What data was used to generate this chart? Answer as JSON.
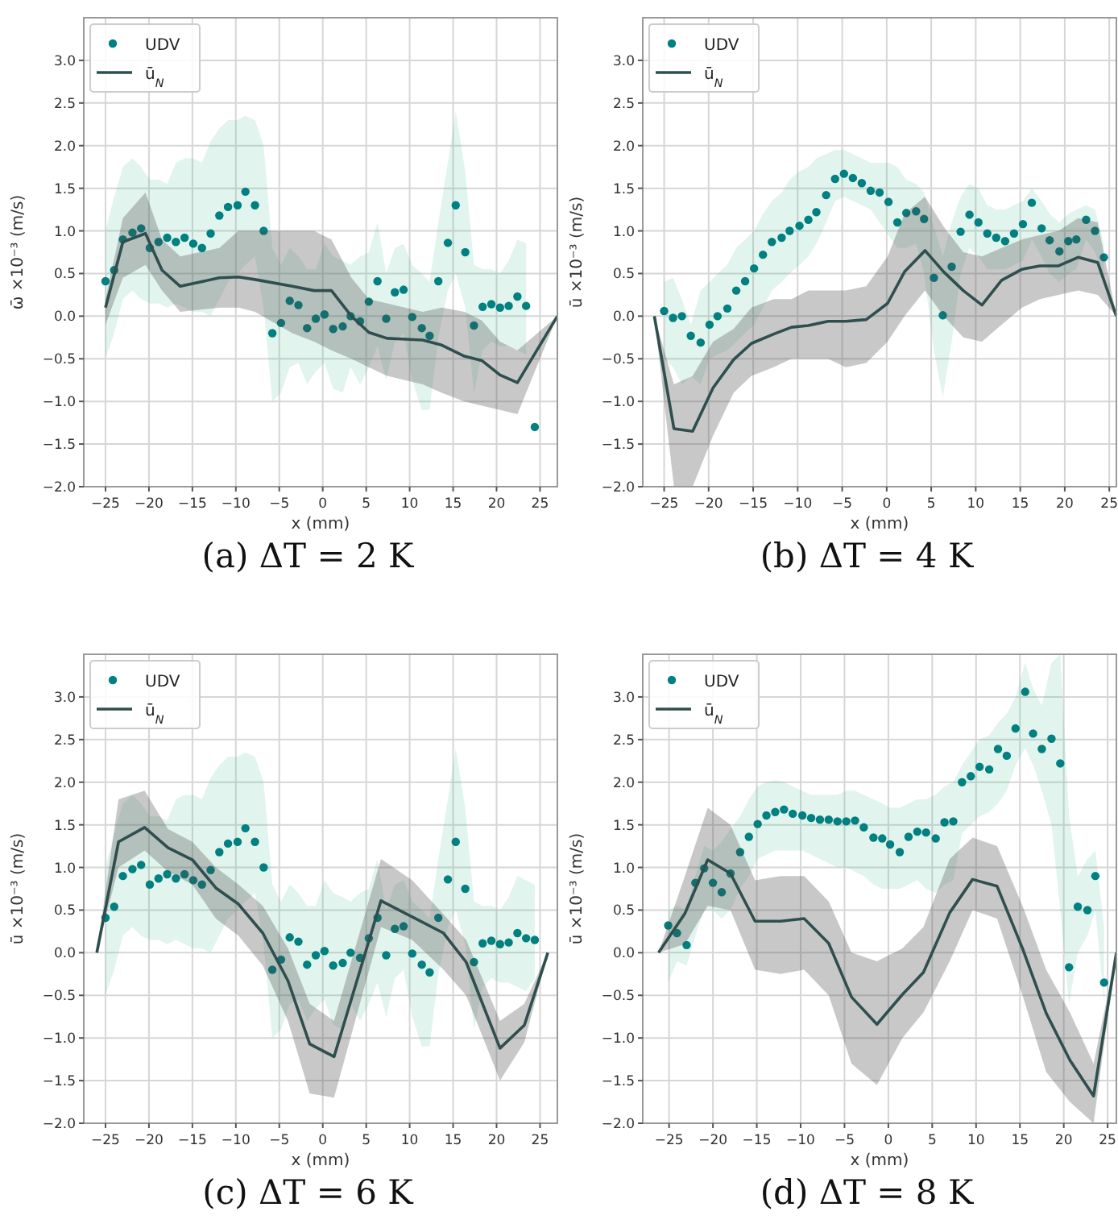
{
  "chart_data": [
    {
      "type": "scatter",
      "title": "(a) ΔT = 2 K",
      "xlabel": "x (mm)",
      "ylabel": "ω̄ ×10⁻³ (m/s)",
      "xlim": [
        -27.5,
        27
      ],
      "ylim": [
        -2,
        3.5
      ],
      "xticks": [
        -25,
        -20,
        -15,
        -10,
        -5,
        0,
        5,
        10,
        15,
        20,
        25
      ],
      "yticks": [
        {
          "value": -2,
          "label": "−2.0"
        },
        {
          "value": -1.5,
          "label": "−1.5"
        },
        {
          "value": -1,
          "label": "−1.0"
        },
        {
          "value": -0.5,
          "label": "−0.5"
        },
        {
          "value": 0,
          "label": "0.0"
        },
        {
          "value": 0.5,
          "label": "0.5"
        },
        {
          "value": 1,
          "label": "1.0"
        },
        {
          "value": 1.5,
          "label": "1.5"
        },
        {
          "value": 2,
          "label": "2.0"
        },
        {
          "value": 2.5,
          "label": "2.5"
        },
        {
          "value": 3,
          "label": "3.0"
        }
      ],
      "grid": true,
      "legend": "top left",
      "line_style": "solid",
      "series": [
        {
          "name": "UDV",
          "marker": "circle",
          "color": "#008080",
          "x": [
            -25,
            -24,
            -23,
            -21.9,
            -20.9,
            -19.9,
            -18.9,
            -17.9,
            -16.9,
            -15.9,
            -14.9,
            -13.9,
            -12.9,
            -11.9,
            -10.9,
            -9.8,
            -8.9,
            -7.8,
            -6.8,
            -5.8,
            -4.8,
            -3.8,
            -2.8,
            -1.8,
            -0.8,
            0.2,
            1.2,
            2.3,
            3.2,
            4.3,
            5.3,
            6.3,
            7.3,
            8.3,
            9.3,
            10.3,
            11.4,
            12.3,
            13.3,
            14.4,
            15.3,
            16.4,
            17.4,
            18.4,
            19.4,
            20.4,
            21.4,
            22.4,
            23.4,
            24.4
          ],
          "values": [
            0.41,
            0.54,
            0.9,
            0.98,
            1.03,
            0.8,
            0.87,
            0.92,
            0.87,
            0.92,
            0.85,
            0.8,
            0.97,
            1.18,
            1.28,
            1.3,
            1.46,
            1.3,
            1.0,
            -0.2,
            -0.08,
            0.18,
            0.13,
            -0.14,
            -0.03,
            0.02,
            -0.15,
            -0.12,
            0.0,
            -0.06,
            0.17,
            0.41,
            -0.03,
            0.28,
            0.31,
            -0.01,
            -0.14,
            -0.23,
            0.41,
            0.86,
            1.3,
            0.75,
            -0.11,
            0.11,
            0.14,
            0.1,
            0.12,
            0.23,
            0.12,
            -1.3
          ],
          "upper": [
            1.0,
            1.4,
            1.75,
            1.85,
            1.75,
            1.6,
            1.6,
            1.55,
            1.8,
            1.85,
            1.85,
            1.8,
            2.05,
            2.2,
            2.3,
            2.3,
            2.35,
            2.3,
            2.0,
            0.8,
            0.6,
            0.8,
            0.7,
            0.55,
            0.55,
            0.85,
            0.7,
            0.65,
            0.6,
            0.7,
            0.75,
            1.1,
            0.5,
            0.8,
            0.85,
            0.6,
            0.5,
            0.4,
            1.1,
            1.8,
            2.4,
            1.7,
            0.6,
            0.55,
            0.55,
            0.5,
            0.65,
            0.9,
            0.85,
            null
          ],
          "lower": [
            -0.5,
            -0.2,
            0.2,
            0.3,
            0.2,
            0.15,
            0.15,
            0.1,
            0.15,
            0.1,
            0.05,
            0.05,
            0.0,
            0.2,
            0.4,
            0.5,
            0.6,
            0.7,
            0.1,
            -1.0,
            -0.9,
            -0.6,
            -0.55,
            -0.8,
            -0.65,
            -0.55,
            -0.85,
            -0.9,
            -0.6,
            -0.8,
            -0.6,
            -0.35,
            -0.75,
            -0.3,
            -0.2,
            -0.75,
            -1.1,
            -1.1,
            -0.25,
            0.3,
            0.5,
            0.1,
            -0.9,
            -0.4,
            -0.3,
            -0.35,
            -0.35,
            -0.4,
            -0.45,
            null
          ]
        },
        {
          "name": "ū$_{N}$",
          "type": "line",
          "color": "#2f4f4f",
          "x": [
            -25,
            -23,
            -20.4,
            -18.5,
            -16.4,
            -11.9,
            -9.7,
            -7.8,
            -3.5,
            -1,
            1,
            3.3,
            5.3,
            7.4,
            11.5,
            13.7,
            16.3,
            18.3,
            20.4,
            22.4,
            27
          ],
          "values": [
            0.1,
            0.87,
            0.97,
            0.54,
            0.35,
            0.45,
            0.46,
            0.43,
            0.35,
            0.3,
            0.3,
            0.0,
            -0.19,
            -0.26,
            -0.28,
            -0.34,
            -0.47,
            -0.52,
            -0.69,
            -0.78,
            0.0
          ],
          "upper": [
            0.2,
            1.15,
            1.45,
            0.9,
            0.7,
            0.8,
            1.0,
            1.0,
            1.0,
            1.0,
            0.9,
            0.45,
            0.2,
            0.15,
            0.05,
            0.1,
            0.05,
            -0.05,
            -0.3,
            -0.4,
            0.0
          ],
          "lower": [
            -0.1,
            0.45,
            0.6,
            0.3,
            0.05,
            0.1,
            0.1,
            0.05,
            -0.2,
            -0.3,
            -0.4,
            -0.5,
            -0.6,
            -0.7,
            -0.8,
            -0.9,
            -1.0,
            -1.05,
            -1.1,
            -1.15,
            0.0
          ]
        }
      ]
    },
    {
      "type": "scatter",
      "title": "(b) ΔT = 4 K",
      "xlabel": "x (mm)",
      "ylabel": "ū ×10⁻³ (m/s)",
      "xlim": [
        -27.4,
        25.8
      ],
      "ylim": [
        -2,
        3.5
      ],
      "xticks": [
        -25,
        -20,
        -15,
        -10,
        -5,
        0,
        5,
        10,
        15,
        20,
        25
      ],
      "yticks": [
        {
          "value": -2,
          "label": "−2.0"
        },
        {
          "value": -1.5,
          "label": "−1.5"
        },
        {
          "value": -1,
          "label": "−1.0"
        },
        {
          "value": -0.5,
          "label": "−0.5"
        },
        {
          "value": 0,
          "label": "0.0"
        },
        {
          "value": 0.5,
          "label": "0.5"
        },
        {
          "value": 1,
          "label": "1.0"
        },
        {
          "value": 1.5,
          "label": "1.5"
        },
        {
          "value": 2,
          "label": "2.0"
        },
        {
          "value": 2.5,
          "label": "2.5"
        },
        {
          "value": 3,
          "label": "3.0"
        }
      ],
      "grid": true,
      "legend": "top left",
      "line_style": "solid",
      "series": [
        {
          "name": "UDV",
          "marker": "circle",
          "color": "#008080",
          "x": [
            -25,
            -24,
            -23,
            -22,
            -20.9,
            -19.9,
            -19,
            -17.9,
            -16.9,
            -15.9,
            -14.9,
            -13.9,
            -12.9,
            -11.8,
            -10.9,
            -9.8,
            -8.8,
            -7.9,
            -6.8,
            -5.8,
            -4.8,
            -3.8,
            -2.8,
            -1.8,
            -0.8,
            0.2,
            1.2,
            2.2,
            3.3,
            4.2,
            5.3,
            6.3,
            7.3,
            8.3,
            9.3,
            10.3,
            11.3,
            12.3,
            13.3,
            14.3,
            15.3,
            16.3,
            17.4,
            18.3,
            19.4,
            20.4,
            21.3,
            22.4,
            23.4,
            24.4
          ],
          "values": [
            0.06,
            -0.02,
            0.0,
            -0.23,
            -0.31,
            -0.1,
            0.0,
            0.09,
            0.3,
            0.41,
            0.56,
            0.72,
            0.87,
            0.92,
            1.0,
            1.06,
            1.13,
            1.22,
            1.42,
            1.61,
            1.67,
            1.62,
            1.56,
            1.47,
            1.45,
            1.34,
            1.1,
            1.21,
            1.23,
            1.14,
            0.45,
            0.01,
            0.58,
            0.99,
            1.19,
            1.1,
            0.97,
            0.92,
            0.88,
            0.97,
            1.08,
            1.33,
            1.03,
            0.89,
            0.76,
            0.88,
            0.9,
            1.13,
            1.0,
            0.69
          ],
          "upper": [
            0.4,
            0.45,
            0.2,
            -0.1,
            0.3,
            0.4,
            0.5,
            0.6,
            0.8,
            0.9,
            1.0,
            1.2,
            1.35,
            1.45,
            1.6,
            1.7,
            1.75,
            1.85,
            1.9,
            1.95,
            1.95,
            1.9,
            1.85,
            1.8,
            1.8,
            1.8,
            1.75,
            1.6,
            1.55,
            1.45,
            1.05,
            0.7,
            1.1,
            1.4,
            1.55,
            1.5,
            1.3,
            1.25,
            1.25,
            1.3,
            1.35,
            1.5,
            1.35,
            1.2,
            1.1,
            1.2,
            1.25,
            1.3,
            1.25,
            0.85
          ],
          "lower": [
            -0.5,
            -0.6,
            -0.8,
            -0.7,
            -0.8,
            -0.5,
            -0.45,
            -0.4,
            -0.3,
            -0.2,
            -0.1,
            0.1,
            0.3,
            0.4,
            0.5,
            0.6,
            0.7,
            0.85,
            1.1,
            1.35,
            1.4,
            1.35,
            1.3,
            1.25,
            1.1,
            0.95,
            0.8,
            0.8,
            0.85,
            0.5,
            -0.4,
            -0.95,
            -0.3,
            0.5,
            0.8,
            0.7,
            0.55,
            0.55,
            0.55,
            0.6,
            0.65,
            0.9,
            0.7,
            0.5,
            0.4,
            0.5,
            0.55,
            0.9,
            0.75,
            0.45
          ]
        },
        {
          "name": "ū$_{N}$",
          "type": "line",
          "color": "#2f4f4f",
          "x": [
            -26.1,
            -23.9,
            -21.8,
            -19.5,
            -17.2,
            -15.2,
            -12.7,
            -10.7,
            -8.8,
            -6.6,
            -4.6,
            -2.3,
            0.1,
            2.0,
            4.3,
            6.4,
            8.6,
            10.7,
            12.9,
            15.2,
            17.2,
            19.3,
            21.5,
            23.7,
            25.8
          ],
          "values": [
            0.0,
            -1.32,
            -1.35,
            -0.84,
            -0.51,
            -0.32,
            -0.21,
            -0.13,
            -0.11,
            -0.06,
            -0.06,
            -0.04,
            0.15,
            0.52,
            0.77,
            0.52,
            0.3,
            0.13,
            0.42,
            0.55,
            0.59,
            0.59,
            0.69,
            0.63,
            0.0
          ],
          "upper": [
            0.0,
            -0.8,
            -0.7,
            -0.3,
            -0.15,
            0.1,
            0.2,
            0.2,
            0.3,
            0.3,
            0.3,
            0.35,
            0.7,
            1.2,
            1.4,
            1.05,
            0.75,
            0.7,
            0.8,
            0.9,
            0.95,
            1.0,
            1.15,
            1.1,
            0.0
          ],
          "lower": [
            0.0,
            -2.0,
            -2.0,
            -1.4,
            -0.9,
            -0.7,
            -0.6,
            -0.5,
            -0.5,
            -0.5,
            -0.6,
            -0.55,
            -0.3,
            0.0,
            0.3,
            0.0,
            -0.25,
            -0.3,
            -0.1,
            0.1,
            0.2,
            0.25,
            0.3,
            0.25,
            0.0
          ]
        }
      ]
    },
    {
      "type": "scatter",
      "title": "(c) ΔT = 6 K",
      "xlabel": "x (mm)",
      "ylabel": "ū ×10⁻³ (m/s)",
      "xlim": [
        -27.5,
        27
      ],
      "ylim": [
        -2,
        3.5
      ],
      "xticks": [
        -25,
        -20,
        -15,
        -10,
        -5,
        0,
        5,
        10,
        15,
        20,
        25
      ],
      "yticks": [
        {
          "value": -2,
          "label": "−2.0"
        },
        {
          "value": -1.5,
          "label": "−1.5"
        },
        {
          "value": -1,
          "label": "−1.0"
        },
        {
          "value": -0.5,
          "label": "−0.5"
        },
        {
          "value": 0,
          "label": "0.0"
        },
        {
          "value": 0.5,
          "label": "0.5"
        },
        {
          "value": 1,
          "label": "1.0"
        },
        {
          "value": 1.5,
          "label": "1.5"
        },
        {
          "value": 2,
          "label": "2.0"
        },
        {
          "value": 2.5,
          "label": "2.5"
        },
        {
          "value": 3,
          "label": "3.0"
        }
      ],
      "grid": true,
      "legend": "top left",
      "line_style": "solid",
      "series": [
        {
          "name": "UDV",
          "marker": "circle",
          "color": "#008080",
          "x": [
            -25,
            -24,
            -23,
            -21.9,
            -20.9,
            -19.9,
            -18.9,
            -17.9,
            -16.9,
            -15.9,
            -14.9,
            -13.9,
            -12.9,
            -11.9,
            -10.9,
            -9.8,
            -8.9,
            -7.8,
            -6.8,
            -5.8,
            -4.8,
            -3.8,
            -2.8,
            -1.8,
            -0.8,
            0.2,
            1.2,
            2.3,
            3.2,
            4.3,
            5.3,
            6.3,
            7.3,
            8.3,
            9.3,
            10.3,
            11.4,
            12.3,
            13.3,
            14.4,
            15.3,
            16.4,
            17.4,
            18.4,
            19.4,
            20.4,
            21.4,
            22.4,
            23.4,
            24.4
          ],
          "values": [
            0.41,
            0.54,
            0.9,
            0.98,
            1.03,
            0.8,
            0.87,
            0.92,
            0.87,
            0.92,
            0.85,
            0.8,
            0.97,
            1.18,
            1.28,
            1.3,
            1.46,
            1.3,
            1.0,
            -0.2,
            -0.08,
            0.18,
            0.13,
            -0.14,
            -0.03,
            0.02,
            -0.15,
            -0.12,
            0.0,
            -0.06,
            0.17,
            0.41,
            -0.03,
            0.28,
            0.31,
            -0.01,
            -0.14,
            -0.23,
            0.41,
            0.86,
            1.3,
            0.75,
            -0.11,
            0.11,
            0.14,
            0.1,
            0.12,
            0.23,
            0.17,
            0.15
          ],
          "upper": [
            1.0,
            1.4,
            1.75,
            1.85,
            1.75,
            1.6,
            1.6,
            1.55,
            1.8,
            1.85,
            1.85,
            1.8,
            2.05,
            2.2,
            2.3,
            2.3,
            2.35,
            2.3,
            2.0,
            0.8,
            0.6,
            0.8,
            0.7,
            0.55,
            0.55,
            0.85,
            0.7,
            0.65,
            0.6,
            0.7,
            0.75,
            1.1,
            0.5,
            0.8,
            0.85,
            0.6,
            0.5,
            0.4,
            1.1,
            1.8,
            2.4,
            1.7,
            0.6,
            0.55,
            0.55,
            0.5,
            0.65,
            0.9,
            0.85,
            0.8
          ],
          "lower": [
            -0.5,
            -0.2,
            0.2,
            0.3,
            0.2,
            0.15,
            0.15,
            0.1,
            0.15,
            0.1,
            0.05,
            0.05,
            0.0,
            0.2,
            0.4,
            0.5,
            0.6,
            0.7,
            0.1,
            -1.0,
            -0.9,
            -0.6,
            -0.55,
            -0.8,
            -0.65,
            -0.55,
            -0.85,
            -0.9,
            -0.6,
            -0.8,
            -0.6,
            -0.35,
            -0.75,
            -0.3,
            -0.2,
            -0.75,
            -1.1,
            -1.1,
            -0.25,
            0.3,
            0.5,
            0.1,
            -0.9,
            -0.4,
            -0.3,
            -0.35,
            -0.35,
            -0.4,
            -0.45,
            -0.3
          ]
        },
        {
          "name": "ū$_{N}$",
          "type": "line",
          "color": "#2f4f4f",
          "x": [
            -26,
            -23.5,
            -20.5,
            -17.8,
            -15,
            -12.3,
            -9.7,
            -6.9,
            -4.0,
            -1.5,
            1.3,
            6.7,
            10.3,
            13.9,
            16.5,
            20.4,
            23.2,
            25.9
          ],
          "values": [
            0.0,
            1.3,
            1.47,
            1.23,
            1.09,
            0.76,
            0.57,
            0.23,
            -0.33,
            -1.07,
            -1.22,
            0.61,
            0.42,
            0.23,
            -0.11,
            -1.12,
            -0.85,
            0.0
          ],
          "upper": [
            0.0,
            1.8,
            1.9,
            1.45,
            1.3,
            1.0,
            0.8,
            0.55,
            0.05,
            -0.6,
            -0.8,
            1.1,
            0.85,
            0.45,
            0.15,
            -0.8,
            -0.6,
            0.0
          ],
          "lower": [
            0.0,
            1.0,
            1.2,
            0.95,
            0.8,
            0.4,
            0.2,
            -0.15,
            -0.8,
            -1.65,
            -1.7,
            0.3,
            0.15,
            -0.2,
            -0.5,
            -1.5,
            -1.05,
            0.0
          ]
        }
      ]
    },
    {
      "type": "scatter",
      "title": "(d) ΔT = 8 K",
      "xlabel": "x (mm)",
      "ylabel": "ū ×10⁻³ (m/s)",
      "xlim": [
        -28,
        26
      ],
      "ylim": [
        -2,
        3.5
      ],
      "xticks": [
        -25,
        -20,
        -15,
        -10,
        -5,
        0,
        5,
        10,
        15,
        20,
        25
      ],
      "yticks": [
        {
          "value": -2,
          "label": "−2.0"
        },
        {
          "value": -1.5,
          "label": "−1.5"
        },
        {
          "value": -1,
          "label": "−1.0"
        },
        {
          "value": -0.5,
          "label": "−0.5"
        },
        {
          "value": 0,
          "label": "0.0"
        },
        {
          "value": 0.5,
          "label": "0.5"
        },
        {
          "value": 1,
          "label": "1.0"
        },
        {
          "value": 1.5,
          "label": "1.5"
        },
        {
          "value": 2,
          "label": "2.0"
        },
        {
          "value": 2.5,
          "label": "2.5"
        },
        {
          "value": 3,
          "label": "3.0"
        }
      ],
      "grid": true,
      "legend": "top left",
      "line_style": "solid",
      "series": [
        {
          "name": "UDV",
          "marker": "circle",
          "color": "#008080",
          "x": [
            -25.1,
            -24.1,
            -23,
            -22,
            -21,
            -20,
            -19,
            -18,
            -16.9,
            -15.9,
            -14.9,
            -13.9,
            -12.9,
            -11.9,
            -10.9,
            -9.8,
            -8.8,
            -7.8,
            -6.8,
            -5.8,
            -4.8,
            -3.8,
            -2.8,
            -1.7,
            -0.7,
            0.2,
            1.3,
            2.3,
            3.3,
            4.3,
            5.4,
            6.4,
            7.4,
            8.4,
            9.4,
            10.4,
            11.5,
            12.5,
            13.5,
            14.5,
            15.6,
            16.5,
            17.5,
            18.6,
            19.6,
            20.6,
            21.6,
            22.7,
            23.6,
            24.6
          ],
          "values": [
            0.32,
            0.23,
            0.09,
            0.82,
            0.99,
            0.82,
            0.71,
            0.93,
            1.18,
            1.36,
            1.51,
            1.61,
            1.65,
            1.68,
            1.63,
            1.61,
            1.58,
            1.56,
            1.56,
            1.54,
            1.54,
            1.55,
            1.47,
            1.35,
            1.34,
            1.27,
            1.18,
            1.36,
            1.42,
            1.41,
            1.34,
            1.53,
            1.54,
            2.0,
            2.07,
            2.18,
            2.15,
            2.39,
            2.31,
            2.63,
            3.06,
            2.57,
            2.39,
            2.51,
            2.22,
            -0.17,
            0.54,
            0.5,
            0.9,
            -0.35
          ],
          "upper": [
            0.5,
            0.55,
            0.5,
            0.9,
            1.25,
            1.2,
            1.3,
            1.45,
            1.6,
            1.8,
            1.95,
            2.0,
            2.02,
            2.0,
            1.95,
            1.9,
            1.85,
            1.85,
            1.85,
            1.85,
            1.9,
            1.9,
            1.85,
            1.8,
            1.75,
            1.7,
            1.7,
            1.75,
            1.8,
            1.8,
            1.85,
            1.95,
            2.0,
            2.2,
            2.35,
            2.5,
            2.55,
            2.7,
            2.8,
            3.0,
            3.4,
            3.1,
            2.9,
            3.4,
            3.5,
            1.6,
            0.9,
            1.1,
            1.2,
            0.3
          ],
          "lower": [
            -0.35,
            -0.1,
            -0.15,
            0.2,
            0.5,
            0.5,
            0.4,
            0.5,
            0.75,
            0.9,
            1.1,
            1.15,
            1.2,
            1.2,
            1.2,
            1.2,
            1.15,
            1.1,
            1.05,
            1.0,
            1.0,
            0.95,
            0.9,
            0.8,
            0.75,
            0.75,
            0.75,
            0.8,
            0.85,
            0.75,
            0.7,
            0.8,
            0.85,
            1.4,
            1.5,
            1.6,
            1.65,
            1.75,
            1.9,
            2.2,
            2.4,
            2.2,
            1.9,
            1.5,
            0.5,
            -0.6,
            0.0,
            0.2,
            0.5,
            -0.6
          ]
        },
        {
          "name": "ū$_{N}$",
          "type": "line",
          "color": "#2f4f4f",
          "x": [
            -26.2,
            -23.2,
            -20.6,
            -18,
            -15.2,
            -12.3,
            -9.6,
            -6.8,
            -4.2,
            -1.3,
            1.6,
            4.0,
            7.0,
            9.6,
            12.4,
            15.3,
            18.0,
            20.7,
            23.4,
            26
          ],
          "values": [
            0.0,
            0.46,
            1.09,
            0.93,
            0.37,
            0.37,
            0.4,
            0.11,
            -0.52,
            -0.84,
            -0.49,
            -0.23,
            0.47,
            0.86,
            0.78,
            0.05,
            -0.71,
            -1.26,
            -1.68,
            0.0
          ],
          "upper": [
            0.0,
            0.9,
            1.7,
            1.5,
            0.85,
            0.9,
            0.9,
            0.6,
            0.0,
            -0.1,
            0.05,
            0.3,
            1.1,
            1.35,
            1.25,
            0.55,
            -0.2,
            -0.7,
            -1.3,
            0.0
          ],
          "lower": [
            0.0,
            0.1,
            0.55,
            0.5,
            -0.2,
            -0.25,
            -0.2,
            -0.5,
            -1.3,
            -1.55,
            -1.0,
            -0.7,
            -0.1,
            0.5,
            0.4,
            -0.5,
            -1.4,
            -1.75,
            -2.0,
            0.0
          ]
        }
      ]
    }
  ]
}
